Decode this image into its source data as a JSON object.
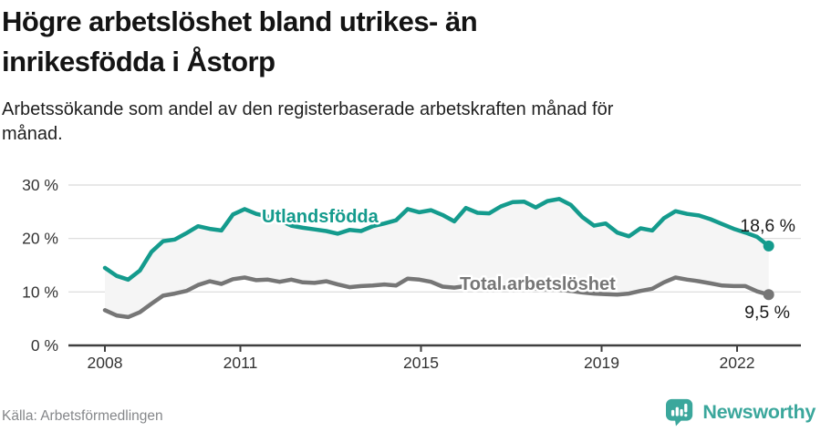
{
  "header": {
    "title_lines": [
      "Högre arbetslöshet bland utrikes- än",
      "inrikesfödda i Åstorp"
    ],
    "subtitle_lines": [
      "Arbetssökande som andel av den registerbaserade arbetskraften månad för",
      "månad."
    ]
  },
  "chart_data": {
    "type": "line",
    "unit": "%",
    "x_range": [
      2008.0,
      2022.7
    ],
    "x_tick_labels": [
      "2008",
      "2011",
      "2015",
      "2019",
      "2022"
    ],
    "x_tick_values": [
      2008,
      2011,
      2015,
      2019,
      2022
    ],
    "y_tick_labels": [
      "0 %",
      "10 %",
      "20 %",
      "30 %"
    ],
    "y_tick_values": [
      0,
      10,
      20,
      30
    ],
    "ylim": [
      0,
      31
    ],
    "grid": true,
    "band_fill_between_series": "#f5f5f5",
    "series": [
      {
        "name": "Utlandsfödda",
        "color": "#149b8d",
        "end_label": "18,6 %",
        "end_value": 18.6,
        "values": [
          14.5,
          13.0,
          12.3,
          14.0,
          17.5,
          19.5,
          19.8,
          21.0,
          22.3,
          21.8,
          21.5,
          24.5,
          25.5,
          24.6,
          24.1,
          23.4,
          22.4,
          22.0,
          21.7,
          21.4,
          20.9,
          21.6,
          21.4,
          22.3,
          22.8,
          23.4,
          25.5,
          24.9,
          25.3,
          24.4,
          23.2,
          25.7,
          24.8,
          24.7,
          26.0,
          26.8,
          26.9,
          25.8,
          27.0,
          27.4,
          26.3,
          24.0,
          22.4,
          22.8,
          21.1,
          20.4,
          21.9,
          21.5,
          23.8,
          25.1,
          24.6,
          24.3,
          23.6,
          22.7,
          21.8,
          21.1,
          20.3,
          18.6
        ]
      },
      {
        "name": "Total arbetslöshet",
        "color": "#767676",
        "end_label": "9,5 %",
        "end_value": 9.5,
        "values": [
          6.6,
          5.6,
          5.3,
          6.2,
          7.8,
          9.3,
          9.7,
          10.2,
          11.3,
          12.0,
          11.5,
          12.4,
          12.7,
          12.2,
          12.3,
          11.9,
          12.3,
          11.8,
          11.7,
          12.0,
          11.4,
          10.9,
          11.1,
          11.2,
          11.4,
          11.2,
          12.5,
          12.3,
          11.9,
          11.0,
          10.8,
          11.1,
          10.9,
          10.7,
          10.8,
          10.9,
          10.8,
          10.6,
          10.5,
          10.4,
          10.2,
          9.9,
          9.7,
          9.6,
          9.5,
          9.7,
          10.2,
          10.6,
          11.8,
          12.7,
          12.3,
          12.0,
          11.6,
          11.2,
          11.1,
          11.1,
          10.1,
          9.5
        ]
      }
    ]
  },
  "footer": {
    "source": "Källa: Arbetsförmedlingen",
    "logo_text": "Newsworthy"
  },
  "colors": {
    "teal": "#149b8d",
    "gray_line": "#767676",
    "gridline": "#dadada",
    "axis": "#3f3f3f",
    "tick_text": "#333333",
    "annotation_text": "#1a1a1a",
    "logo_teal": "#3ba79c"
  }
}
